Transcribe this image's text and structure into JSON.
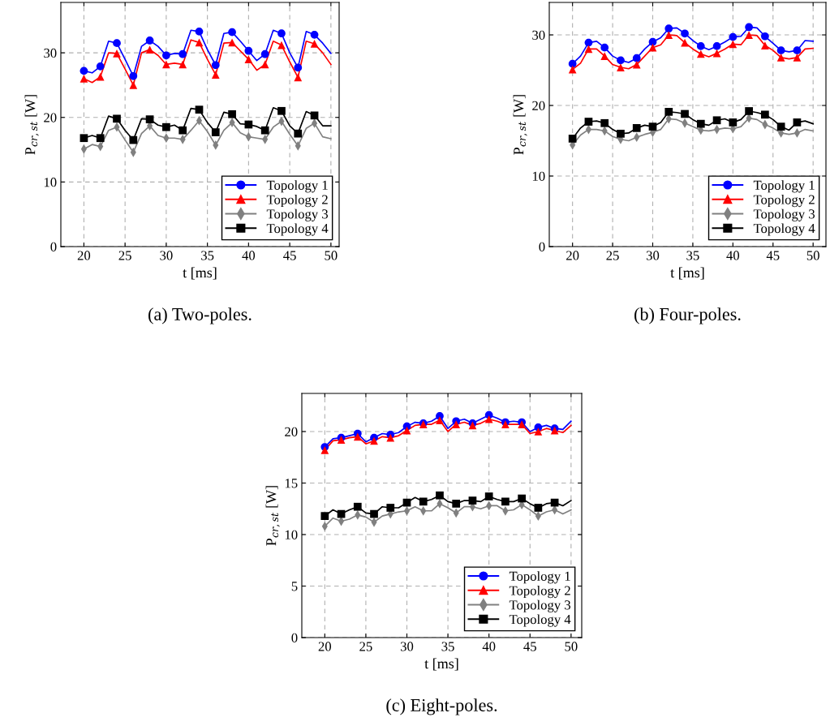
{
  "chart_data": [
    {
      "type": "line",
      "title": "(a) Two-poles.",
      "xlabel": "t [ms]",
      "ylabel": "P$_{cr,st}$ [W]",
      "x": [
        20,
        21,
        22,
        23,
        24,
        25,
        26,
        27,
        28,
        29,
        30,
        31,
        32,
        33,
        34,
        35,
        36,
        37,
        38,
        39,
        40,
        41,
        42,
        43,
        44,
        45,
        46,
        47,
        48,
        49,
        50
      ],
      "xlim": [
        17.2,
        51
      ],
      "ylim": [
        0,
        37.8
      ],
      "xticks": [
        20,
        25,
        30,
        35,
        40,
        45,
        50
      ],
      "yticks": [
        0,
        10,
        20,
        30
      ],
      "grid": true,
      "legend": "bottom right",
      "line_style": "solid",
      "series": [
        {
          "color": "#0000ff",
          "values": [
            27.2,
            26.9,
            27.9,
            31.8,
            31.5,
            29.0,
            26.4,
            31.0,
            31.9,
            31.0,
            29.6,
            29.9,
            29.8,
            33.5,
            33.3,
            30.5,
            28.1,
            33.0,
            33.2,
            31.8,
            30.3,
            28.8,
            29.8,
            33.5,
            33.0,
            30.0,
            27.7,
            33.3,
            32.8,
            31.5,
            29.9
          ]
        },
        {
          "color": "#ff0000",
          "values": [
            26.0,
            25.4,
            26.3,
            30.0,
            29.9,
            27.5,
            25.0,
            30.0,
            30.5,
            29.6,
            28.2,
            28.4,
            28.2,
            32.0,
            31.6,
            29.0,
            26.6,
            31.5,
            31.6,
            30.3,
            29.0,
            27.3,
            28.2,
            31.8,
            31.2,
            28.6,
            26.2,
            31.8,
            31.4,
            30.0,
            28.2
          ]
        },
        {
          "color": "#808080",
          "values": [
            15.1,
            15.8,
            15.5,
            18.0,
            18.5,
            16.5,
            14.6,
            17.5,
            18.7,
            17.2,
            16.8,
            16.8,
            16.6,
            18.0,
            19.5,
            17.8,
            15.7,
            18.0,
            19.2,
            17.6,
            17.0,
            16.8,
            16.6,
            18.5,
            19.4,
            17.4,
            15.6,
            18.3,
            19.1,
            17.0,
            16.7
          ]
        },
        {
          "color": "#000000",
          "values": [
            16.8,
            17.2,
            16.8,
            20.2,
            19.8,
            18.0,
            16.5,
            19.8,
            19.7,
            18.8,
            18.5,
            18.8,
            18.0,
            21.4,
            21.2,
            19.2,
            17.7,
            20.8,
            20.5,
            19.0,
            18.9,
            18.6,
            18.0,
            21.5,
            21.0,
            18.7,
            17.5,
            20.9,
            20.3,
            18.7,
            18.7
          ]
        },
        {
          "type": "scatter",
          "name": "Topology 1",
          "color": "#0000ff",
          "marker": "circle",
          "x": [
            20,
            22,
            24,
            26,
            28,
            30,
            32,
            34,
            36,
            38,
            40,
            42,
            44,
            46,
            48
          ],
          "values": [
            27.2,
            27.9,
            31.5,
            26.4,
            31.9,
            29.6,
            29.8,
            33.3,
            28.1,
            33.2,
            30.3,
            29.8,
            33.0,
            27.7,
            32.8
          ]
        },
        {
          "type": "scatter",
          "name": "Topology 2",
          "color": "#ff0000",
          "marker": "triangle",
          "x": [
            20,
            22,
            24,
            26,
            28,
            30,
            32,
            34,
            36,
            38,
            40,
            42,
            44,
            46,
            48
          ],
          "values": [
            26.0,
            26.3,
            29.9,
            25.0,
            30.5,
            28.2,
            28.2,
            31.6,
            26.6,
            31.6,
            29.0,
            28.2,
            31.2,
            26.2,
            31.4
          ]
        },
        {
          "type": "scatter",
          "name": "Topology 3",
          "color": "#808080",
          "marker": "diamond",
          "x": [
            20,
            22,
            24,
            26,
            28,
            30,
            32,
            34,
            36,
            38,
            40,
            42,
            44,
            46,
            48
          ],
          "values": [
            15.1,
            15.5,
            18.5,
            14.6,
            18.7,
            16.8,
            16.6,
            19.5,
            15.7,
            19.2,
            17.0,
            16.6,
            19.4,
            15.6,
            19.1
          ]
        },
        {
          "type": "scatter",
          "name": "Topology 4",
          "color": "#000000",
          "marker": "square",
          "x": [
            20,
            22,
            24,
            26,
            28,
            30,
            32,
            34,
            36,
            38,
            40,
            42,
            44,
            46,
            48
          ],
          "values": [
            16.8,
            16.8,
            19.8,
            16.5,
            19.7,
            18.5,
            18.0,
            21.2,
            17.7,
            20.5,
            18.9,
            18.0,
            21.0,
            17.5,
            20.3
          ]
        }
      ]
    },
    {
      "type": "line",
      "title": "(b) Four-poles.",
      "xlabel": "t [ms]",
      "ylabel": "P$_{cr,st}$ [W]",
      "x": [
        20,
        21,
        22,
        23,
        24,
        25,
        26,
        27,
        28,
        29,
        30,
        31,
        32,
        33,
        34,
        35,
        36,
        37,
        38,
        39,
        40,
        41,
        42,
        43,
        44,
        45,
        46,
        47,
        48,
        49,
        50
      ],
      "xlim": [
        17.1,
        51.6
      ],
      "ylim": [
        0,
        34.6
      ],
      "xticks": [
        20,
        25,
        30,
        35,
        40,
        45,
        50
      ],
      "yticks": [
        0,
        10,
        20,
        30
      ],
      "grid": true,
      "legend": "bottom right",
      "line_style": "solid",
      "series": [
        {
          "color": "#0000ff",
          "values": [
            25.9,
            27.0,
            28.9,
            29.1,
            28.2,
            27.0,
            26.4,
            26.1,
            26.7,
            28.0,
            29.0,
            29.6,
            30.9,
            31.0,
            30.2,
            29.2,
            28.4,
            27.9,
            28.4,
            29.0,
            29.7,
            29.8,
            31.1,
            31.0,
            29.8,
            28.8,
            27.8,
            27.6,
            27.8,
            29.2,
            29.1
          ]
        },
        {
          "color": "#ff0000",
          "values": [
            25.1,
            26.0,
            28.0,
            28.0,
            27.0,
            25.8,
            25.4,
            25.2,
            25.8,
            27.0,
            28.2,
            28.6,
            30.0,
            29.9,
            28.9,
            28.0,
            27.3,
            26.9,
            27.4,
            28.0,
            28.7,
            28.6,
            30.0,
            29.9,
            28.5,
            27.8,
            26.8,
            26.6,
            26.8,
            28.0,
            28.1
          ]
        },
        {
          "color": "#808080",
          "values": [
            14.4,
            15.8,
            16.6,
            16.6,
            16.4,
            15.6,
            15.2,
            15.0,
            15.5,
            15.9,
            16.2,
            16.6,
            18.1,
            18.0,
            17.5,
            17.0,
            16.5,
            16.4,
            16.6,
            16.8,
            16.7,
            17.0,
            18.2,
            18.0,
            17.3,
            16.8,
            16.1,
            15.9,
            16.1,
            16.6,
            16.4
          ]
        },
        {
          "color": "#000000",
          "values": [
            15.3,
            16.8,
            17.7,
            17.8,
            17.5,
            16.6,
            16.0,
            16.1,
            16.8,
            17.2,
            17.0,
            17.6,
            19.1,
            19.0,
            18.8,
            18.0,
            17.4,
            17.2,
            17.9,
            18.1,
            17.6,
            18.0,
            19.2,
            19.0,
            18.7,
            18.0,
            17.0,
            16.5,
            17.6,
            17.8,
            17.4
          ]
        },
        {
          "type": "scatter",
          "name": "Topology 1",
          "color": "#0000ff",
          "marker": "circle",
          "x": [
            20,
            22,
            24,
            26,
            28,
            30,
            32,
            34,
            36,
            38,
            40,
            42,
            44,
            46,
            48
          ],
          "values": [
            25.9,
            28.9,
            28.2,
            26.4,
            26.7,
            29.0,
            30.9,
            30.2,
            28.4,
            28.4,
            29.7,
            31.1,
            29.8,
            27.8,
            27.8
          ]
        },
        {
          "type": "scatter",
          "name": "Topology 2",
          "color": "#ff0000",
          "marker": "triangle",
          "x": [
            20,
            22,
            24,
            26,
            28,
            30,
            32,
            34,
            36,
            38,
            40,
            42,
            44,
            46,
            48
          ],
          "values": [
            25.1,
            28.0,
            27.0,
            25.4,
            25.8,
            28.2,
            30.0,
            28.9,
            27.3,
            27.4,
            28.7,
            30.0,
            28.5,
            26.8,
            26.8
          ]
        },
        {
          "type": "scatter",
          "name": "Topology 3",
          "color": "#808080",
          "marker": "diamond",
          "x": [
            20,
            22,
            24,
            26,
            28,
            30,
            32,
            34,
            36,
            38,
            40,
            42,
            44,
            46,
            48
          ],
          "values": [
            14.4,
            16.6,
            16.4,
            15.2,
            15.5,
            16.2,
            18.1,
            17.5,
            16.5,
            16.6,
            16.7,
            18.2,
            17.3,
            16.1,
            16.1
          ]
        },
        {
          "type": "scatter",
          "name": "Topology 4",
          "color": "#000000",
          "marker": "square",
          "x": [
            20,
            22,
            24,
            26,
            28,
            30,
            32,
            34,
            36,
            38,
            40,
            42,
            44,
            46,
            48
          ],
          "values": [
            15.3,
            17.7,
            17.5,
            16.0,
            16.8,
            17.0,
            19.1,
            18.8,
            17.4,
            17.9,
            17.6,
            19.2,
            18.7,
            17.0,
            17.6
          ]
        }
      ]
    },
    {
      "type": "line",
      "title": "(c) Eight-poles.",
      "xlabel": "t [ms]",
      "ylabel": "P$_{cr,st}$ [W]",
      "x": [
        20,
        21,
        22,
        23,
        24,
        25,
        26,
        27,
        28,
        29,
        30,
        31,
        32,
        33,
        34,
        35,
        36,
        37,
        38,
        39,
        40,
        41,
        42,
        43,
        44,
        45,
        46,
        47,
        48,
        49,
        50
      ],
      "xlim": [
        17.2,
        51.3
      ],
      "ylim": [
        0,
        23.7
      ],
      "xticks": [
        20,
        25,
        30,
        35,
        40,
        45,
        50
      ],
      "yticks": [
        0,
        5,
        10,
        15,
        20
      ],
      "grid": true,
      "legend": "bottom right",
      "line_style": "solid",
      "series": [
        {
          "color": "#0000ff",
          "values": [
            18.5,
            19.3,
            19.4,
            19.6,
            19.8,
            19.0,
            19.4,
            19.8,
            19.7,
            19.9,
            20.5,
            20.9,
            20.8,
            21.0,
            21.5,
            20.3,
            21.0,
            21.2,
            20.8,
            21.2,
            21.6,
            21.3,
            20.9,
            21.0,
            20.9,
            20.0,
            20.4,
            20.6,
            20.3,
            20.2,
            21.0
          ]
        },
        {
          "color": "#ff0000",
          "values": [
            18.2,
            19.1,
            19.2,
            19.4,
            19.5,
            18.8,
            19.1,
            19.5,
            19.4,
            19.6,
            20.1,
            20.6,
            20.7,
            20.7,
            21.1,
            20.0,
            20.7,
            20.9,
            20.6,
            20.8,
            21.2,
            21.0,
            20.7,
            20.7,
            20.7,
            19.8,
            20.0,
            20.3,
            20.1,
            19.9,
            20.6
          ]
        },
        {
          "color": "#808080",
          "values": [
            10.8,
            11.6,
            11.3,
            11.5,
            11.9,
            11.7,
            11.2,
            11.8,
            12.0,
            12.2,
            12.3,
            12.7,
            12.3,
            12.3,
            13.0,
            12.6,
            12.1,
            12.7,
            12.7,
            12.5,
            12.8,
            12.8,
            12.3,
            12.4,
            12.9,
            12.4,
            11.8,
            12.2,
            12.4,
            12.0,
            12.4
          ]
        },
        {
          "color": "#000000",
          "values": [
            11.8,
            12.4,
            12.0,
            12.4,
            12.7,
            12.1,
            12.0,
            12.7,
            12.6,
            12.6,
            13.1,
            13.6,
            13.2,
            13.4,
            13.8,
            13.2,
            13.0,
            13.3,
            13.3,
            13.2,
            13.7,
            13.4,
            13.2,
            13.2,
            13.5,
            13.0,
            12.6,
            13.0,
            13.1,
            12.8,
            13.3
          ]
        },
        {
          "type": "scatter",
          "name": "Topology 1",
          "color": "#0000ff",
          "marker": "circle",
          "x": [
            20,
            22,
            24,
            26,
            28,
            30,
            32,
            34,
            36,
            38,
            40,
            42,
            44,
            46,
            48
          ],
          "values": [
            18.5,
            19.4,
            19.8,
            19.4,
            19.7,
            20.5,
            20.8,
            21.5,
            21.0,
            20.8,
            21.6,
            20.9,
            20.9,
            20.4,
            20.3
          ]
        },
        {
          "type": "scatter",
          "name": "Topology 2",
          "color": "#ff0000",
          "marker": "triangle",
          "x": [
            20,
            22,
            24,
            26,
            28,
            30,
            32,
            34,
            36,
            38,
            40,
            42,
            44,
            46,
            48
          ],
          "values": [
            18.2,
            19.2,
            19.5,
            19.1,
            19.4,
            20.1,
            20.7,
            21.1,
            20.7,
            20.6,
            21.2,
            20.7,
            20.7,
            20.0,
            20.1
          ]
        },
        {
          "type": "scatter",
          "name": "Topology 3",
          "color": "#808080",
          "marker": "diamond",
          "x": [
            20,
            22,
            24,
            26,
            28,
            30,
            32,
            34,
            36,
            38,
            40,
            42,
            44,
            46,
            48
          ],
          "values": [
            10.8,
            11.3,
            11.9,
            11.2,
            12.0,
            12.3,
            12.3,
            13.0,
            12.1,
            12.7,
            12.8,
            12.3,
            12.9,
            11.8,
            12.4
          ]
        },
        {
          "type": "scatter",
          "name": "Topology 4",
          "color": "#000000",
          "marker": "square",
          "x": [
            20,
            22,
            24,
            26,
            28,
            30,
            32,
            34,
            36,
            38,
            40,
            42,
            44,
            46,
            48
          ],
          "values": [
            11.8,
            12.0,
            12.7,
            12.0,
            12.6,
            13.1,
            13.2,
            13.8,
            13.0,
            13.3,
            13.7,
            13.2,
            13.5,
            12.6,
            13.1
          ]
        }
      ]
    }
  ]
}
